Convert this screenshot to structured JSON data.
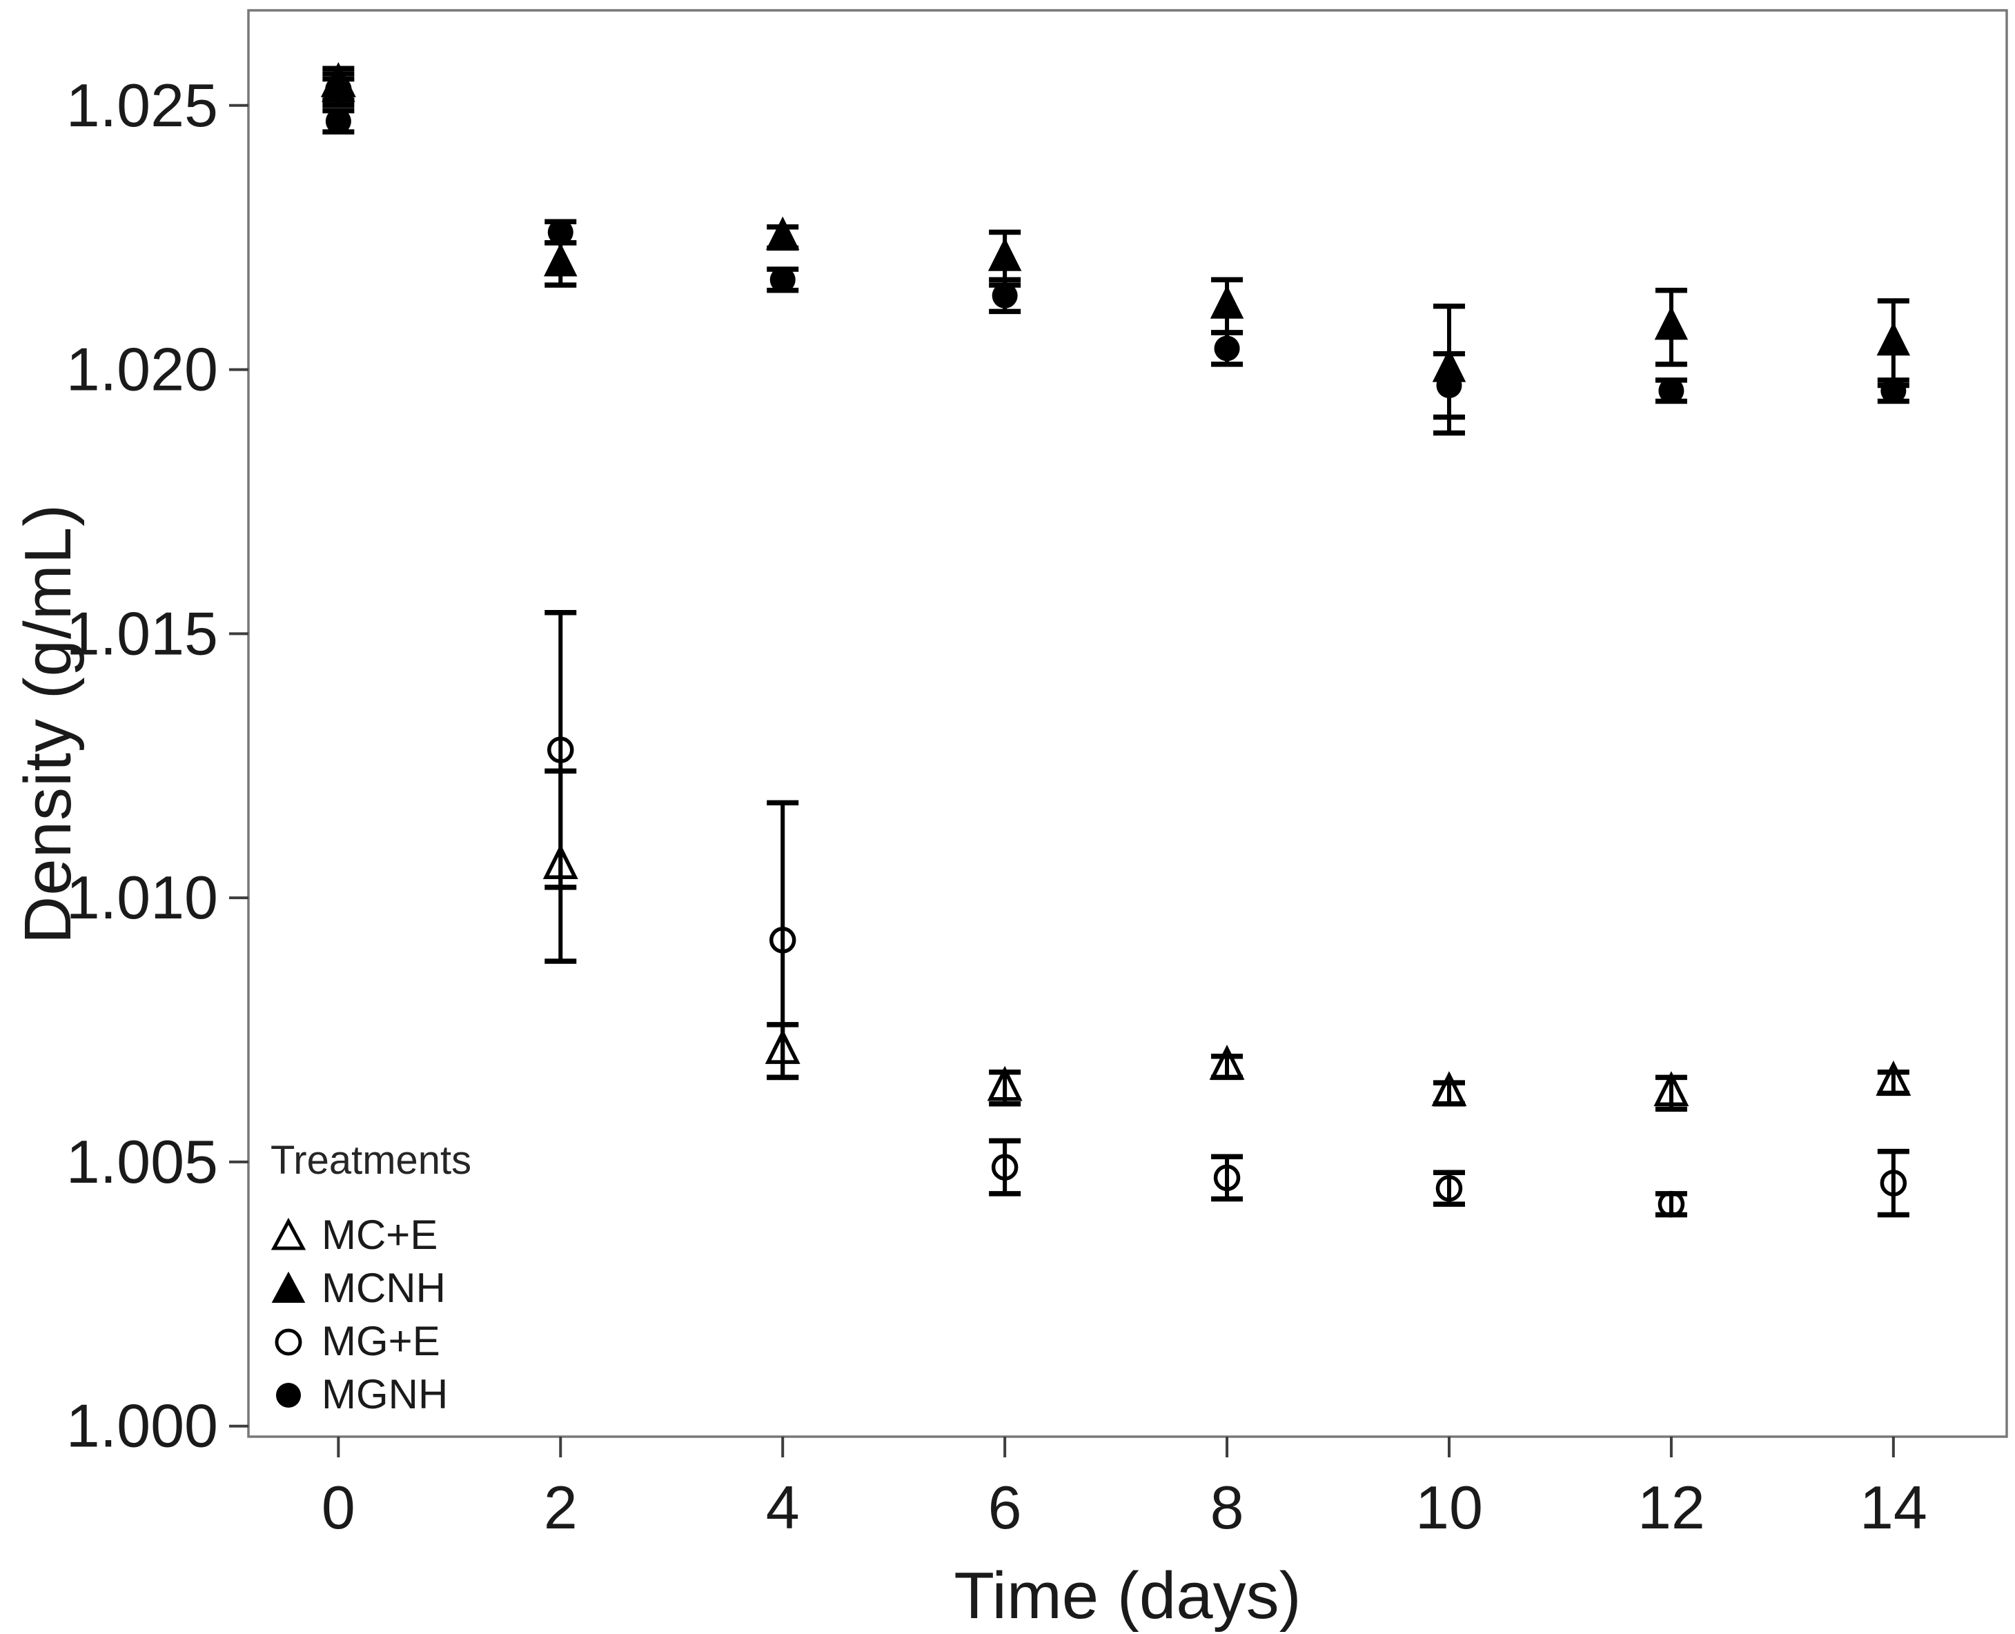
{
  "colors": {
    "marker": "#000000",
    "axis_box": "#787878",
    "tick": "#3d3d3d",
    "text": "#1a1a1a",
    "background": "#ffffff"
  },
  "chart_data": {
    "type": "scatter",
    "title": "",
    "xlabel": "Time (days)",
    "ylabel": "Density (g/mL)",
    "grid": false,
    "xlim": [
      -0.81,
      15.02
    ],
    "ylim": [
      0.9998,
      1.0268
    ],
    "x_tick_values": [
      0,
      2,
      4,
      6,
      8,
      10,
      12,
      14
    ],
    "x_tick_labels": [
      "0",
      "2",
      "4",
      "6",
      "8",
      "10",
      "12",
      "14"
    ],
    "y_tick_values": [
      1.0,
      1.005,
      1.01,
      1.015,
      1.02,
      1.025
    ],
    "y_tick_labels": [
      "1.000",
      "1.005",
      "1.010",
      "1.015",
      "1.020",
      "1.025"
    ],
    "x": [
      0,
      2,
      4,
      6,
      8,
      10,
      12,
      14
    ],
    "series": [
      {
        "name": "MC+E",
        "marker": "open-triangle",
        "values": [
          1.0254,
          1.0106,
          1.0071,
          1.0064,
          1.0068,
          1.0063,
          1.0063,
          1.0065
        ],
        "errors": [
          0.0003,
          0.0018,
          0.0005,
          0.0003,
          0.0002,
          0.0002,
          0.0003,
          0.0002
        ]
      },
      {
        "name": "MCNH",
        "marker": "filled-triangle",
        "values": [
          1.0253,
          1.022,
          1.0225,
          1.0221,
          1.0212,
          1.02,
          1.0208,
          1.0205
        ],
        "errors": [
          0.0002,
          0.0004,
          0.0002,
          0.0005,
          0.0005,
          0.0012,
          0.0007,
          0.0008
        ]
      },
      {
        "name": "MG+E",
        "marker": "open-circle",
        "values": [
          1.0253,
          1.0128,
          1.0092,
          1.0049,
          1.0047,
          1.0045,
          1.0042,
          1.0046
        ],
        "errors": [
          0.0003,
          0.0026,
          0.0026,
          0.0005,
          0.0004,
          0.0003,
          0.0002,
          0.0006
        ]
      },
      {
        "name": "MGNH",
        "marker": "filled-circle",
        "values": [
          1.0247,
          1.0226,
          1.0217,
          1.0214,
          1.0204,
          1.0197,
          1.0196,
          1.0196
        ],
        "errors": [
          0.0002,
          0.0002,
          0.0002,
          0.0003,
          0.0003,
          0.0006,
          0.0002,
          0.0002
        ]
      }
    ],
    "legend": {
      "title": "Treatments",
      "position": "inside-bottom-left"
    }
  }
}
